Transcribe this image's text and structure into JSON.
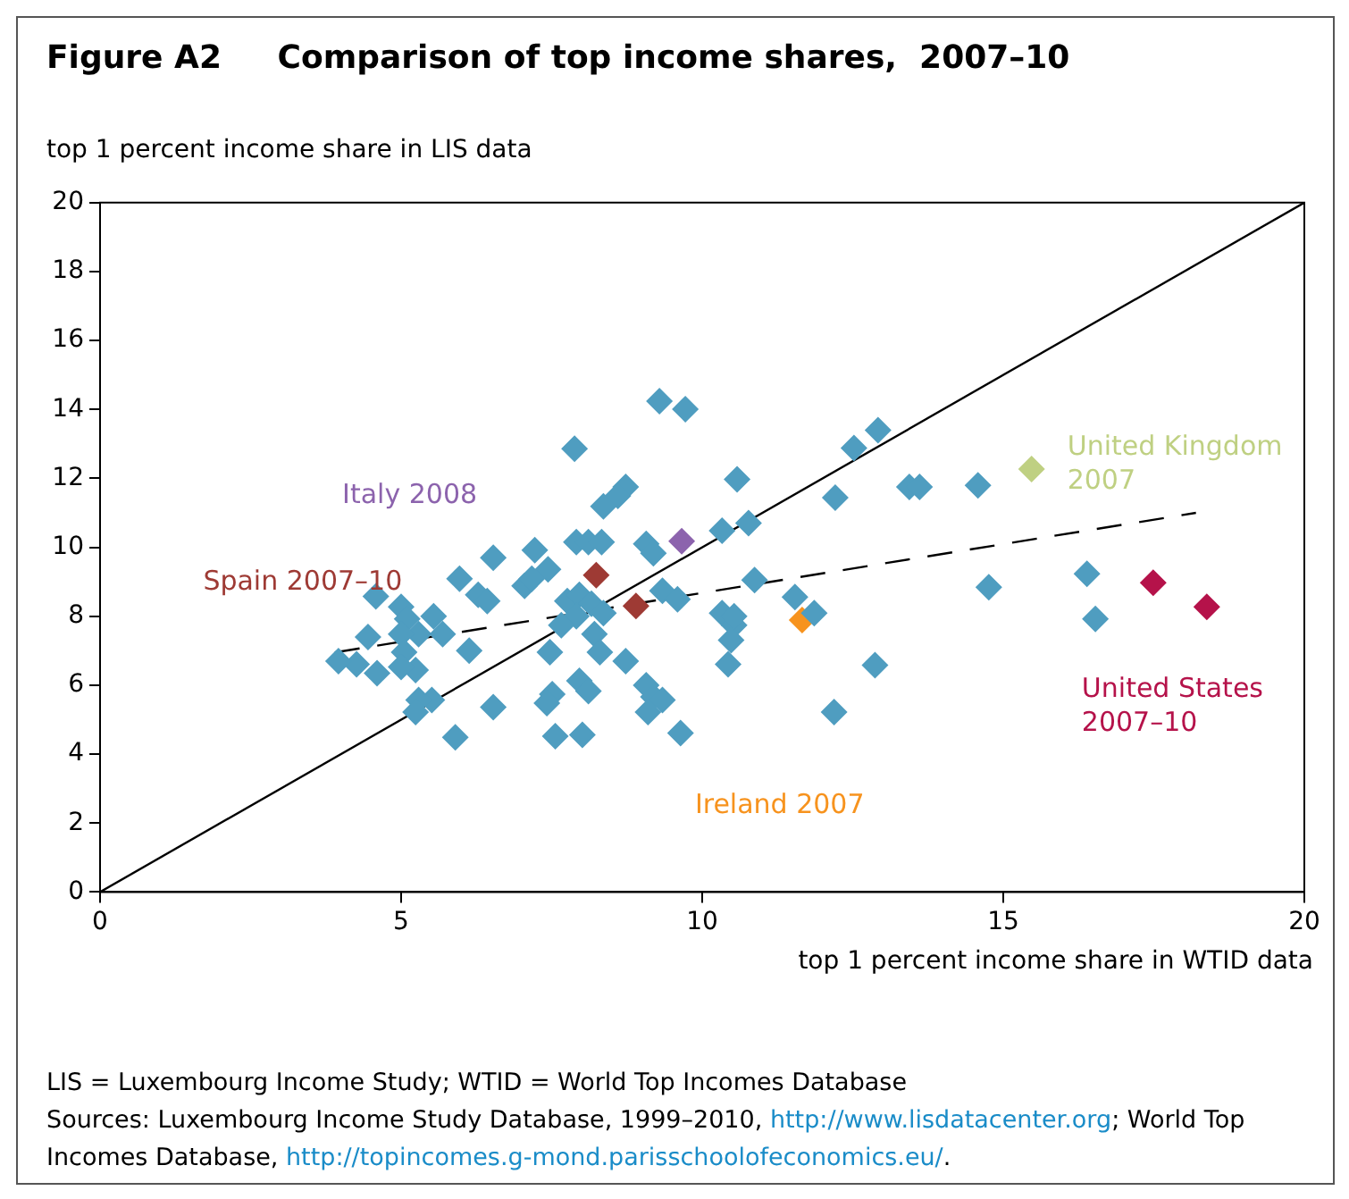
{
  "chart_data": {
    "type": "scatter",
    "title": "Figure A2     Comparison of top income shares,  2007–10",
    "xlabel": "top 1 percent income share in WTID data",
    "ylabel": "top 1 percent income share in LIS data",
    "xlim": [
      0,
      20
    ],
    "ylim": [
      0,
      20
    ],
    "xticks": [
      0,
      5,
      10,
      15,
      20
    ],
    "yticks": [
      0,
      2,
      4,
      6,
      8,
      10,
      12,
      14,
      16,
      18,
      20
    ],
    "grid": false,
    "legend": false,
    "marker": "diamond",
    "series": [
      {
        "color": "#4f9dc0",
        "x": [
          9.29,
          9.72,
          7.88,
          8.73,
          8.6,
          8.36,
          10.58,
          7.91,
          8.11,
          8.33,
          9.07,
          9.19,
          10.33,
          6.53,
          7.22,
          7.44,
          5.97,
          7.05,
          7.17,
          6.28,
          6.43,
          4.58,
          9.34,
          9.59,
          10.33,
          10.53,
          10.48,
          10.43,
          7.76,
          7.96,
          8.16,
          8.36,
          7.91,
          7.66,
          8.21,
          8.3,
          7.47,
          8.73,
          7.96,
          8.11,
          7.51,
          7.42,
          9.07,
          9.19,
          9.34,
          9.1,
          9.64,
          7.56,
          8.01,
          6.53,
          5.9,
          5.51,
          5.29,
          5.24,
          5.0,
          5.1,
          5.29,
          5.54,
          5.69,
          5.0,
          5.05,
          5.24,
          5.0,
          4.45,
          4.6,
          4.26,
          3.96,
          6.13,
          12.92,
          12.52,
          12.21,
          13.44,
          13.61,
          14.58,
          10.77,
          10.87,
          11.54,
          11.86,
          12.87,
          12.19,
          14.76,
          16.39,
          16.53,
          10.53
        ],
        "values": [
          14.24,
          14.01,
          12.86,
          11.75,
          11.49,
          11.19,
          11.97,
          10.15,
          10.15,
          10.15,
          10.1,
          9.83,
          10.48,
          9.7,
          9.92,
          9.36,
          9.09,
          8.88,
          9.09,
          8.62,
          8.44,
          8.58,
          8.74,
          8.49,
          8.09,
          7.74,
          7.31,
          6.61,
          8.44,
          8.62,
          8.36,
          8.09,
          8.0,
          7.74,
          7.48,
          6.96,
          6.96,
          6.7,
          6.13,
          5.83,
          5.74,
          5.48,
          6.0,
          5.66,
          5.57,
          5.22,
          4.61,
          4.52,
          4.56,
          5.36,
          4.49,
          5.57,
          5.57,
          5.22,
          8.27,
          7.92,
          7.48,
          8.0,
          7.48,
          7.48,
          6.96,
          6.44,
          6.53,
          7.4,
          6.35,
          6.61,
          6.7,
          7.0,
          13.4,
          12.88,
          11.44,
          11.75,
          11.75,
          11.8,
          10.7,
          9.05,
          8.56,
          8.09,
          6.58,
          5.22,
          8.84,
          9.23,
          7.92,
          8.0
        ]
      },
      {
        "name": "Spain 2007–10",
        "color": "#9e3a34",
        "x": [
          8.24,
          8.9
        ],
        "values": [
          9.19,
          8.3
        ]
      },
      {
        "name": "Italy 2008",
        "color": "#8c63ad",
        "x": [
          9.66
        ],
        "values": [
          10.18
        ]
      },
      {
        "name": "Ireland 2007",
        "color": "#f7931e",
        "x": [
          11.66
        ],
        "values": [
          7.89
        ]
      },
      {
        "name": "United Kingdom 2007",
        "color": "#bfd082",
        "x": [
          15.47
        ],
        "values": [
          12.27
        ]
      },
      {
        "name": "United States 2007–10",
        "color": "#b5124a",
        "x": [
          17.49,
          18.38
        ],
        "values": [
          8.97,
          8.27
        ]
      },
      {
        "type": "line",
        "color": "#000000",
        "line_style": "solid",
        "marker": "none",
        "x": [
          0,
          20
        ],
        "values": [
          0,
          20
        ]
      },
      {
        "type": "line",
        "color": "#000000",
        "line_style": "dashed",
        "marker": "none",
        "x": [
          3.9,
          18.2
        ],
        "values": [
          6.95,
          11.0
        ]
      }
    ],
    "annotations": [
      "LIS =  Luxembourg Income Study; WTID = World Top Incomes Database",
      "Sources: Luxembourg Income Study Database, 1999–2010, http://www.lisdatacenter.org;  World Top Incomes Database, http://topincomes.g-mond.parisschoolofeconomics.eu/."
    ]
  }
}
